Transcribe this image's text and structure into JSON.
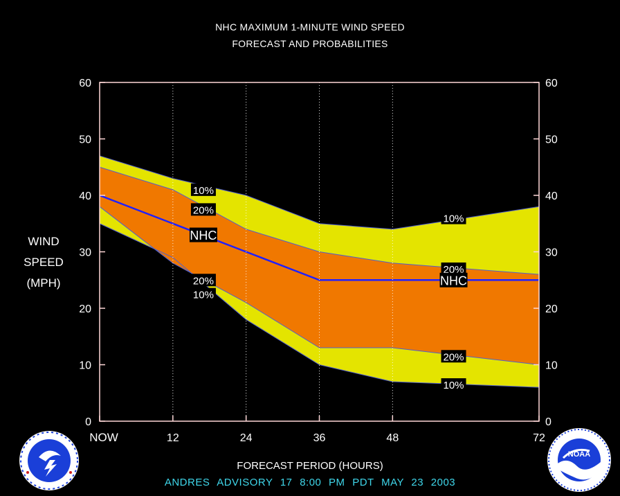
{
  "header": {
    "title": "NHC MAXIMUM 1-MINUTE WIND SPEED",
    "subtitle": "FORECAST AND PROBABILITIES"
  },
  "footer": {
    "advisory_line": "ANDRES   ADVISORY  17  8:00  PM  PDT  MAY  23  2003"
  },
  "logos": {
    "left": "nws-logo-icon",
    "right": "noaa-logo-icon",
    "noaa_text": "NOAA"
  },
  "colors": {
    "background": "#000000",
    "band_10": "#e4e400",
    "band_20": "#f07800",
    "nhc_line": "#2020ff",
    "axis": "#ffd8d8",
    "footer_text": "#3fd6ea"
  },
  "chart_data": {
    "type": "area",
    "title": "NHC MAXIMUM 1-MINUTE WIND SPEED",
    "subtitle": "FORECAST AND PROBABILITIES",
    "xlabel": "FORECAST PERIOD (HOURS)",
    "ylabel_lines": [
      "WIND",
      "SPEED",
      "(MPH)"
    ],
    "xlim": [
      0,
      72
    ],
    "ylim": [
      0,
      60
    ],
    "x_ticks": [
      {
        "value": 0,
        "label": "NOW"
      },
      {
        "value": 12,
        "label": "12"
      },
      {
        "value": 24,
        "label": "24"
      },
      {
        "value": 36,
        "label": "36"
      },
      {
        "value": 48,
        "label": "48"
      },
      {
        "value": 72,
        "label": "72"
      }
    ],
    "y_ticks": [
      0,
      10,
      20,
      30,
      40,
      50,
      60
    ],
    "grid": "vertical dotted at forecast hours",
    "x": [
      0,
      12,
      24,
      36,
      48,
      72
    ],
    "series": [
      {
        "name": "10%",
        "role": "upper",
        "values": [
          47,
          43,
          40,
          35,
          34,
          38
        ]
      },
      {
        "name": "20%",
        "role": "upper",
        "values": [
          45,
          41,
          34,
          30,
          28,
          26
        ]
      },
      {
        "name": "NHC",
        "role": "forecast",
        "values": [
          40,
          35,
          30,
          25,
          25,
          25
        ]
      },
      {
        "name": "20%",
        "role": "lower",
        "values": [
          38,
          28,
          21,
          13,
          13,
          10
        ]
      },
      {
        "name": "10%",
        "role": "lower",
        "values": [
          35,
          29,
          18,
          10,
          7,
          6
        ]
      }
    ],
    "annotations": [
      {
        "text": "10%",
        "x": 17,
        "y": 41
      },
      {
        "text": "20%",
        "x": 17,
        "y": 37.5
      },
      {
        "text": "NHC",
        "x": 17,
        "y": 33
      },
      {
        "text": "20%",
        "x": 17,
        "y": 25
      },
      {
        "text": "10%",
        "x": 17,
        "y": 22.5
      },
      {
        "text": "10%",
        "x": 58,
        "y": 36
      },
      {
        "text": "20%",
        "x": 58,
        "y": 27
      },
      {
        "text": "NHC",
        "x": 58,
        "y": 25
      },
      {
        "text": "20%",
        "x": 58,
        "y": 11.5
      },
      {
        "text": "10%",
        "x": 58,
        "y": 6.5
      }
    ]
  }
}
